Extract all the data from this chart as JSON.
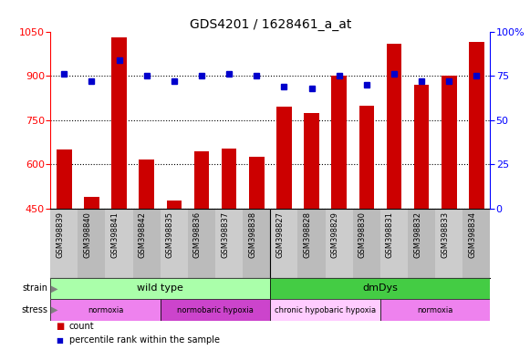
{
  "title": "GDS4201 / 1628461_a_at",
  "samples": [
    "GSM398839",
    "GSM398840",
    "GSM398841",
    "GSM398842",
    "GSM398835",
    "GSM398836",
    "GSM398837",
    "GSM398838",
    "GSM398827",
    "GSM398828",
    "GSM398829",
    "GSM398830",
    "GSM398831",
    "GSM398832",
    "GSM398833",
    "GSM398834"
  ],
  "counts": [
    650,
    490,
    1030,
    615,
    478,
    645,
    655,
    625,
    795,
    775,
    900,
    800,
    1010,
    870,
    900,
    1015
  ],
  "percentile_ranks": [
    76,
    72,
    84,
    75,
    72,
    75,
    76,
    75,
    69,
    68,
    75,
    70,
    76,
    72,
    72,
    75
  ],
  "ylim_left": [
    450,
    1050
  ],
  "ylim_right": [
    0,
    100
  ],
  "yticks_left": [
    450,
    600,
    750,
    900,
    1050
  ],
  "yticks_right": [
    0,
    25,
    50,
    75,
    100
  ],
  "bar_color": "#cc0000",
  "dot_color": "#0000cc",
  "background_color": "#ffffff",
  "strain_groups": [
    {
      "label": "wild type",
      "start": 0,
      "end": 8,
      "color": "#aaffaa"
    },
    {
      "label": "dmDys",
      "start": 8,
      "end": 16,
      "color": "#44cc44"
    }
  ],
  "stress_groups": [
    {
      "label": "normoxia",
      "start": 0,
      "end": 4,
      "color": "#ee82ee"
    },
    {
      "label": "normobaric hypoxia",
      "start": 4,
      "end": 8,
      "color": "#cc44cc"
    },
    {
      "label": "chronic hypobaric hypoxia",
      "start": 8,
      "end": 12,
      "color": "#ffccff"
    },
    {
      "label": "normoxia",
      "start": 12,
      "end": 16,
      "color": "#ee82ee"
    }
  ],
  "legend_count_label": "count",
  "legend_pct_label": "percentile rank within the sample",
  "strain_label": "strain",
  "stress_label": "stress",
  "xlabel_bg_even": "#cccccc",
  "xlabel_bg_odd": "#bbbbbb"
}
